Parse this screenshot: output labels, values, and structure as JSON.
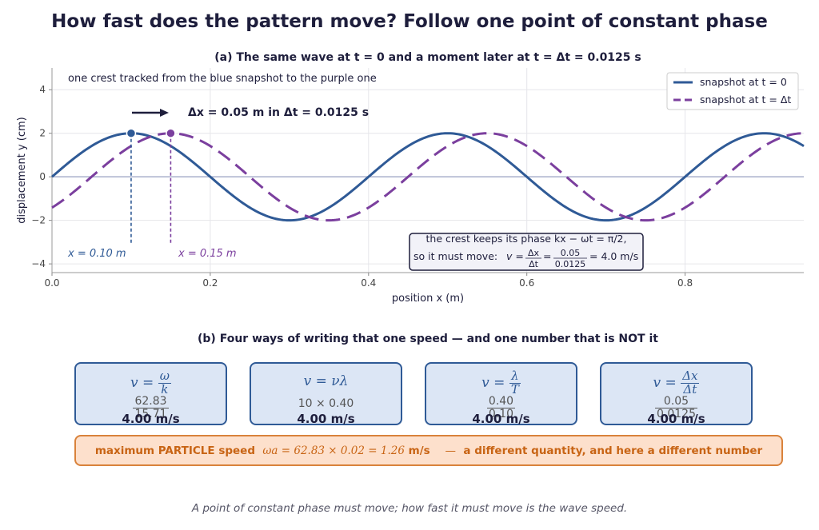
{
  "title": "How fast does the pattern move?  Follow one point of constant phase",
  "panel_a": {
    "title": "(a)  The same wave at  t = 0  and a moment later at  t = Δt = 0.0125 s",
    "annotation_top": "one crest tracked from the blue snapshot to the purple one",
    "arrow_label": "Δx = 0.05 m  in  Δt = 0.0125 s",
    "marker_left_label": "x = 0.10 m",
    "marker_right_label": "x = 0.15 m",
    "info_box": {
      "line1": "the crest keeps its phase  kx − ωt = π/2,",
      "line2_prefix": "so it must move:",
      "line2_formula_lhs": "v =",
      "line2_frac1_num": "Δx",
      "line2_frac1_den": "Δt",
      "line2_frac2_num": "0.05",
      "line2_frac2_den": "0.0125",
      "line2_result": "= 4.0 m/s"
    }
  },
  "chart_data": {
    "type": "line",
    "title": "(a)  The same wave at  t = 0  and a moment later at  t = Δt = 0.0125 s",
    "xlabel": "position  x  (m)",
    "ylabel": "displacement  y  (cm)",
    "xlim": [
      0,
      0.95
    ],
    "ylim": [
      -4.4,
      5
    ],
    "x_ticks": [
      "0.0",
      "0.2",
      "0.4",
      "0.6",
      "0.8"
    ],
    "y_ticks": [
      "−4",
      "−2",
      "0",
      "2",
      "4"
    ],
    "grid": true,
    "legend_position": "top-right",
    "series": [
      {
        "name": "snapshot at  t = 0",
        "amplitude": 2,
        "wavelength": 0.4,
        "crest_x": 0.1,
        "style": "solid",
        "color": "#2f5a96"
      },
      {
        "name": "snapshot at  t = Δt",
        "amplitude": 2,
        "wavelength": 0.4,
        "crest_x": 0.15,
        "style": "dashed",
        "color": "#7b3f9e"
      }
    ],
    "tracked_crest": {
      "x_start": 0.1,
      "x_end": 0.15,
      "y": 2
    }
  },
  "panel_b": {
    "title": "(b)  Four ways of writing that one speed  —  and one number that is NOT it",
    "cards": [
      {
        "formula_lhs": "v =",
        "formula_num": "ω",
        "formula_den": "k",
        "subst_num": "62.83",
        "subst_den": "15.71",
        "result": "4.00 m/s"
      },
      {
        "formula_text": "v = νλ",
        "subst_text": "10 × 0.40",
        "result": "4.00 m/s"
      },
      {
        "formula_lhs": "v =",
        "formula_num": "λ",
        "formula_den": "T",
        "subst_num": "0.40",
        "subst_den": "0.10",
        "result": "4.00 m/s"
      },
      {
        "formula_lhs": "v =",
        "formula_num": "Δx",
        "formula_den": "Δt",
        "subst_num": "0.05",
        "subst_den": "0.0125",
        "result": "4.00 m/s"
      }
    ],
    "particle_box": {
      "label": "maximum PARTICLE speed",
      "formula": "ωa = 62.83 × 0.02 = 1.26",
      "unit": "m/s",
      "dash": "—",
      "note": "a different quantity, and here a different number"
    }
  },
  "footer": "A point of constant phase must move; how fast it must move is the wave speed.",
  "colors": {
    "blue": "#2f5a96",
    "purple": "#7b3f9e",
    "orange": "#c86414",
    "navy": "#1e1e3c"
  }
}
